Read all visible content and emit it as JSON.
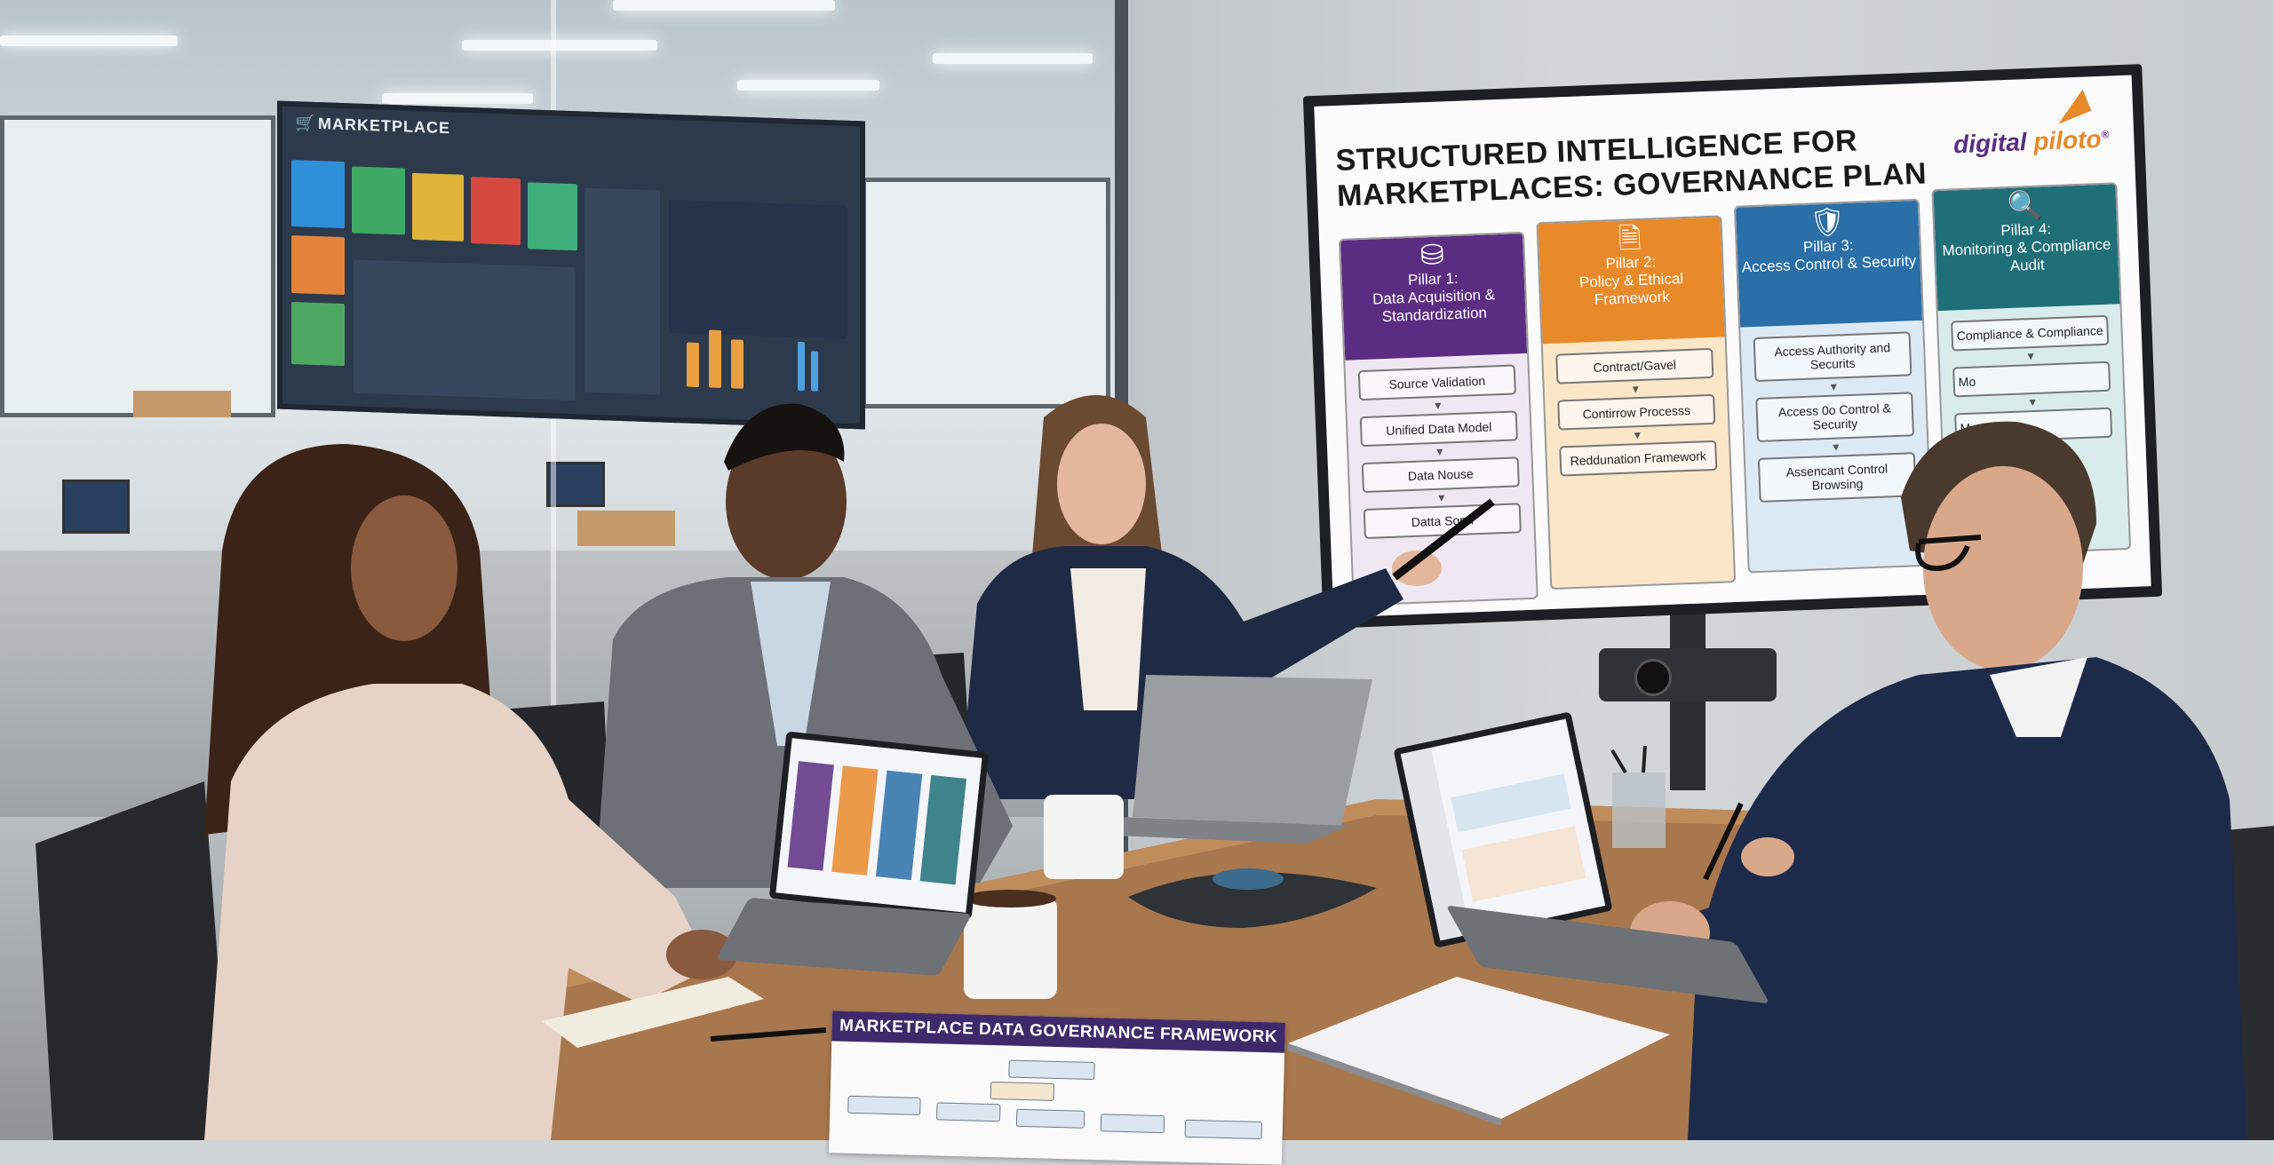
{
  "background_display": {
    "title": "MARKETPLACE",
    "tile_colors": [
      "#2f8fd8",
      "#3fa864",
      "#e0b43a",
      "#d5493f",
      "#3fae7a",
      "#e3843a",
      "#4fa862"
    ]
  },
  "presentation": {
    "title_line1": "STRUCTURED INTELLIGENCE FOR",
    "title_line2": "MARKETPLACES: GOVERNANCE PLAN",
    "logo_part1": "digital",
    "logo_part2": "piloto",
    "logo_mark": "®",
    "pillars": [
      {
        "icon": "database-icon",
        "label": "Pillar 1:",
        "title": "Data Acquisition & Standardization",
        "color": "#5b2d82",
        "body_color": "#efe8f3",
        "items": [
          "Source Validation",
          "Unified Data Model",
          "Data Nouse",
          "Datta Sonn"
        ]
      },
      {
        "icon": "document-gavel-icon",
        "label": "Pillar 2:",
        "title": "Policy & Ethical Framework",
        "color": "#e8892a",
        "body_color": "#fbe6c8",
        "items": [
          "Contract/Gavel",
          "Contirrow Processs",
          "Reddunation Framework"
        ]
      },
      {
        "icon": "shield-check-icon",
        "label": "Pillar 3:",
        "title": "Access Control & Security",
        "color": "#2a6fa8",
        "body_color": "#dceaf5",
        "items": [
          "Access Authority and Securits",
          "Access 0o Control & Security",
          "Assencant Control Browsing"
        ]
      },
      {
        "icon": "magnifier-icon",
        "label": "Pillar 4:",
        "title": "Monitoring & Compliance Audit",
        "color": "#1f6f78",
        "body_color": "#d9ecec",
        "items": [
          "Compliance & Compliance",
          "Mo",
          "M"
        ]
      }
    ]
  },
  "table_document": {
    "title": "MARKETPLACE DATA GOVERNANCE FRAMEWORK"
  }
}
